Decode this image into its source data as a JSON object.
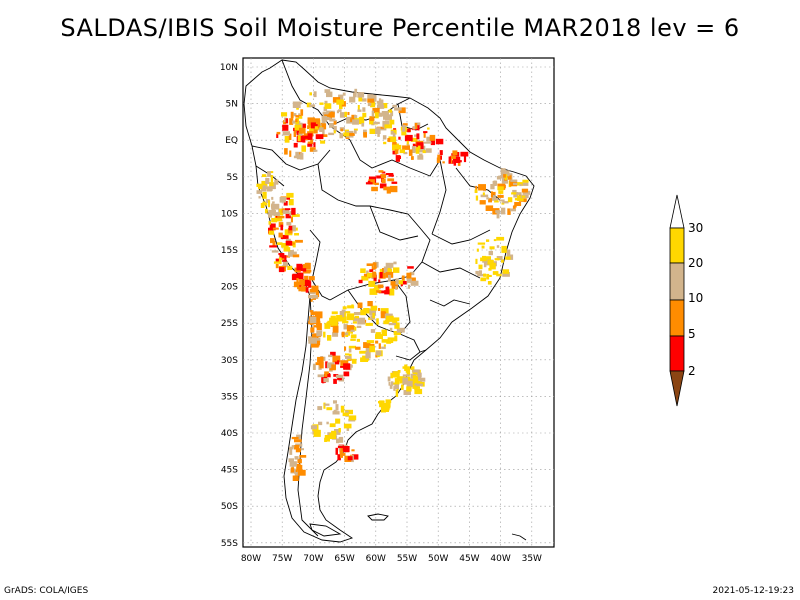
{
  "title": "SALDAS/IBIS Soil Moisture Percentile MAR2018 lev = 6",
  "axes": {
    "lat_labels": [
      "10N",
      "5N",
      "EQ",
      "5S",
      "10S",
      "15S",
      "20S",
      "25S",
      "30S",
      "35S",
      "40S",
      "45S",
      "50S",
      "55S"
    ],
    "lon_labels": [
      "80W",
      "75W",
      "70W",
      "65W",
      "60W",
      "55W",
      "50W",
      "45W",
      "40W",
      "35W"
    ]
  },
  "legend": {
    "labels": [
      "2",
      "5",
      "10",
      "20",
      "30"
    ],
    "colors": [
      "#8b4513",
      "#ff0000",
      "#ff8c00",
      "#d2b48c",
      "#ffd700",
      "#ffffff"
    ]
  },
  "footer": {
    "left": "GrADS: COLA/IGES",
    "right": "2021-05-12-19:23"
  }
}
